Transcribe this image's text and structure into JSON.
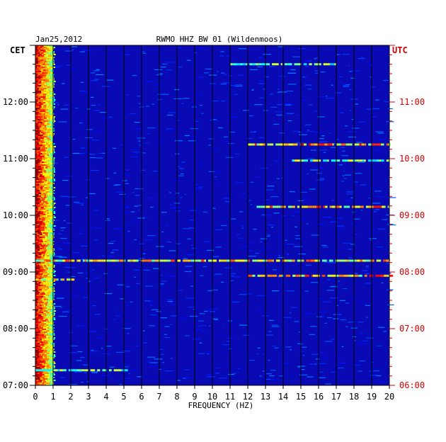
{
  "header": {
    "date": "Jan25,2012",
    "station": "RWMO HHZ BW 01 (Wildenmoos)"
  },
  "chart_data": {
    "type": "heatmap",
    "title": "RWMO HHZ BW 01 (Wildenmoos)",
    "date": "Jan25,2012",
    "xlabel": "FREQUENCY (HZ)",
    "xlim": [
      0,
      20
    ],
    "x_ticks": [
      "0",
      "1",
      "2",
      "3",
      "4",
      "5",
      "6",
      "7",
      "8",
      "9",
      "10",
      "11",
      "12",
      "13",
      "14",
      "15",
      "16",
      "17",
      "18",
      "19",
      "20"
    ],
    "left_axis_label": "CET",
    "right_axis_label": "UTC",
    "left_ticks": [
      "12:00",
      "11:00",
      "10:00",
      "09:00",
      "08:00",
      "07:00"
    ],
    "right_ticks": [
      "11:00",
      "10:00",
      "09:00",
      "08:00",
      "07:00",
      "06:00"
    ],
    "colors": {
      "background": "#0a0ab4",
      "left_axis": "#000000",
      "right_axis": "#d40000",
      "grid": "#000000"
    },
    "events": [
      {
        "utc": "08:12",
        "from_hz": 0,
        "to_hz": 20,
        "level": 0.75
      },
      {
        "utc": "07:56",
        "from_hz": 12,
        "to_hz": 20,
        "level": 0.8
      },
      {
        "utc": "07:52",
        "from_hz": 0,
        "to_hz": 2,
        "level": 0.7
      },
      {
        "utc": "10:15",
        "from_hz": 12,
        "to_hz": 20,
        "level": 0.85
      },
      {
        "utc": "09:58",
        "from_hz": 14.5,
        "to_hz": 20,
        "level": 0.6
      },
      {
        "utc": "09:09",
        "from_hz": 12.5,
        "to_hz": 20,
        "level": 0.8
      },
      {
        "utc": "06:16",
        "from_hz": 0,
        "to_hz": 5,
        "level": 0.55
      },
      {
        "utc": "11:40",
        "from_hz": 11,
        "to_hz": 17,
        "level": 0.55
      }
    ],
    "low_frequency_band_hz": [
      0,
      1
    ]
  }
}
